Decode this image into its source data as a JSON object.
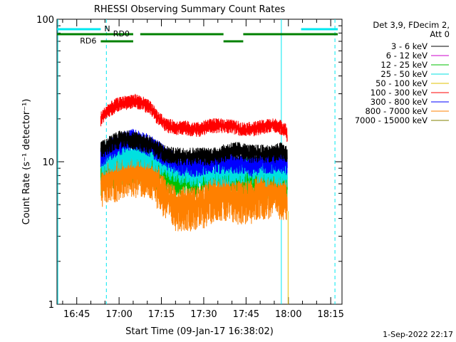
{
  "chart_data": {
    "type": "line",
    "title": "RHESSI Observing Summary Count Rates",
    "xlabel": "Start Time (09-Jan-17 16:38:02)",
    "ylabel": "Count Rate (s⁻¹ detector⁻¹)",
    "y_scale": "log",
    "ylim": [
      1,
      100
    ],
    "y_ticks": [
      "1",
      "10",
      "100"
    ],
    "x_ticks": [
      "16:45",
      "17:00",
      "17:15",
      "17:30",
      "17:45",
      "18:00",
      "18:15"
    ],
    "x_tick_minutes": [
      405,
      420,
      435,
      450,
      465,
      480,
      495
    ],
    "xlim_minutes": [
      398,
      499
    ],
    "legend_header": [
      "Det 3,9, FDecim 2,",
      "Att 0"
    ],
    "legend_position": "right",
    "series": [
      {
        "name": "3 - 6 keV",
        "color": "#000000",
        "x": [
          413.5,
          416,
          418,
          421,
          424,
          427,
          430,
          433,
          436,
          439,
          442,
          445,
          448,
          451,
          454,
          457,
          460,
          463,
          466,
          469,
          472,
          475,
          477.5,
          479,
          479.6
        ],
        "y": [
          12,
          13,
          14,
          14.5,
          14.5,
          14,
          13.5,
          12.5,
          11.5,
          11,
          11,
          11,
          11,
          11,
          11,
          11.5,
          12,
          12,
          11.5,
          11.5,
          11.5,
          11.5,
          12,
          11.5,
          11
        ]
      },
      {
        "name": "6 - 12 keV",
        "color": "#cc00cc",
        "x": [],
        "y": []
      },
      {
        "name": "12 - 25 keV",
        "color": "#00c000",
        "x": [
          413.5,
          416,
          420,
          424,
          428,
          432,
          436,
          440,
          444,
          448,
          452,
          456,
          460,
          464,
          468,
          472,
          476,
          479,
          479.6
        ],
        "y": [
          8,
          8.5,
          9,
          9.5,
          9.5,
          9,
          8,
          7.5,
          7.5,
          7.5,
          7.5,
          7.5,
          7.5,
          7.5,
          7.5,
          7.5,
          7.5,
          7.5,
          7
        ]
      },
      {
        "name": "25 - 50 keV",
        "color": "#00e0e0",
        "x": [
          413.5,
          416,
          420,
          424,
          428,
          432,
          436,
          440,
          444,
          448,
          452,
          456,
          460,
          464,
          468,
          472,
          476,
          479,
          479.6
        ],
        "y": [
          10,
          10.5,
          11,
          11.5,
          11.5,
          11,
          10,
          9,
          8.5,
          8.5,
          8.5,
          8.5,
          8.5,
          9,
          9,
          8.5,
          8.5,
          8.5,
          8
        ]
      },
      {
        "name": "50 - 100 keV",
        "color": "#e0c000",
        "x": [],
        "y": []
      },
      {
        "name": "100 - 300 keV",
        "color": "#ff0000",
        "x": [
          413.5,
          416,
          419,
          422,
          425,
          428,
          431,
          434,
          437,
          440,
          443,
          446,
          449,
          452,
          455,
          458,
          461,
          464,
          467,
          470,
          473,
          476,
          479,
          479.6
        ],
        "y": [
          20,
          23,
          25,
          26,
          27,
          26,
          24,
          20,
          18,
          17.5,
          17.5,
          17,
          17,
          18,
          18,
          18,
          17.5,
          17,
          17,
          17.5,
          18,
          18,
          17,
          15
        ]
      },
      {
        "name": "300 - 800 keV",
        "color": "#0000ff",
        "x": [
          413.5,
          416,
          419,
          422,
          425,
          428,
          431,
          434,
          437,
          440,
          443,
          446,
          449,
          452,
          455,
          458,
          461,
          464,
          467,
          470,
          473,
          476,
          479,
          479.6
        ],
        "y": [
          11,
          12,
          13,
          14,
          14.5,
          14,
          13,
          12,
          10.5,
          10,
          9.5,
          9.5,
          9.5,
          10,
          10,
          10,
          10,
          10,
          9.5,
          10,
          10,
          10,
          10,
          9.5
        ]
      },
      {
        "name": "800 - 7000 keV",
        "color": "#ff8000",
        "x": [
          413.5,
          416,
          419,
          422,
          425,
          428,
          431,
          434,
          437,
          440,
          443,
          446,
          449,
          452,
          455,
          458,
          461,
          464,
          467,
          470,
          473,
          476,
          479,
          479.6
        ],
        "y": [
          7,
          7.5,
          8,
          8.5,
          8.5,
          8.5,
          8,
          7,
          5.5,
          5,
          5,
          5,
          5,
          5.5,
          6,
          5.5,
          5.5,
          5.5,
          5.5,
          6,
          6,
          6,
          6,
          4.5
        ]
      },
      {
        "name": "7000 - 15000 keV",
        "color": "#808000",
        "x": [],
        "y": []
      }
    ],
    "flags": [
      {
        "label": "N",
        "color": "#00e8f0",
        "row": "top",
        "segments": [
          [
            398,
            413.5
          ],
          [
            484.5,
            497.5
          ]
        ]
      },
      {
        "label": "RD0",
        "color": "#008000",
        "row": "middle",
        "segments": [
          [
            398,
            425
          ],
          [
            427.5,
            457
          ],
          [
            464,
            497.5
          ]
        ]
      },
      {
        "label": "RD6",
        "color": "#008000",
        "row": "lower",
        "segments": [
          [
            413.5,
            425
          ],
          [
            457,
            464
          ]
        ]
      }
    ],
    "vlines": [
      {
        "x": 398.3,
        "color": "#00e8f0",
        "style": "solid"
      },
      {
        "x": 415.5,
        "color": "#00e8f0",
        "style": "dashed"
      },
      {
        "x": 477.5,
        "color": "#00e8f0",
        "style": "solid"
      },
      {
        "x": 496.5,
        "color": "#00e8f0",
        "style": "dashed"
      }
    ]
  },
  "footer": {
    "timestamp": "1-Sep-2022 22:17"
  }
}
